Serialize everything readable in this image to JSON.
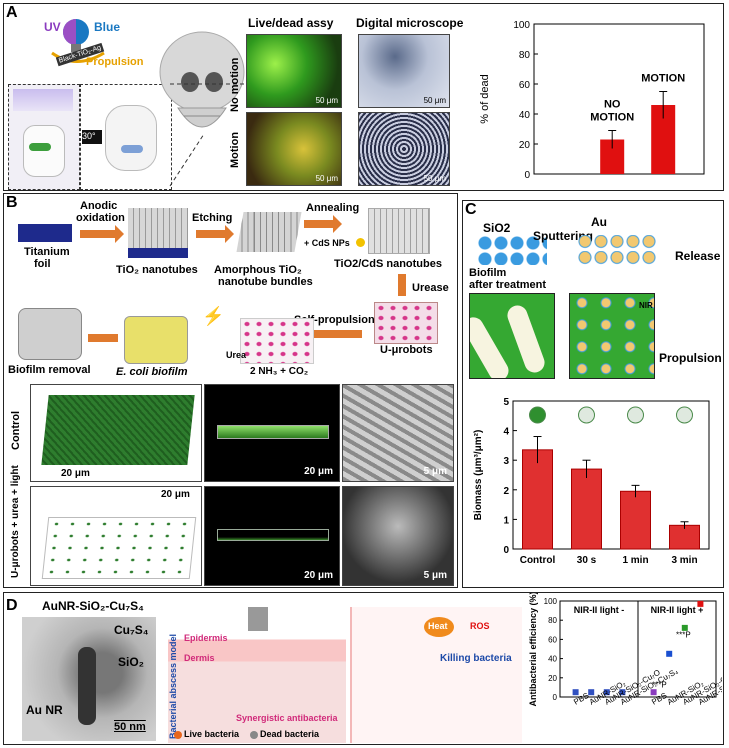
{
  "panels": {
    "a": "A",
    "b": "B",
    "c": "C",
    "d": "D"
  },
  "a": {
    "uv": "UV",
    "blue": "Blue",
    "propulsion": "Propulsion",
    "particle": "Black-TiO₂-Ag",
    "angle": "30°",
    "live_dead": "Live/dead assy",
    "digital": "Digital microscope",
    "no_motion": "No motion",
    "motion": "Motion",
    "sb_live_1": "50 μm",
    "sb_live_2": "50 μm",
    "sb_dig_1": "50 μm",
    "sb_dig_2": "50 μm"
  },
  "chart_a": {
    "type": "bar",
    "categories": [
      "NO MOTION",
      "MOTION"
    ],
    "values": [
      23,
      46
    ],
    "errors": [
      6,
      9
    ],
    "ylabel": "% of dead",
    "ylim": [
      0,
      100
    ],
    "yticks": [
      "0",
      "20",
      "40",
      "60",
      "80",
      "100"
    ],
    "bar_labels": [
      "NO\nMOTION",
      "MOTION"
    ],
    "color": "#e01010"
  },
  "b": {
    "titanium": "Titanium",
    "foil": "foil",
    "anodic": "Anodic",
    "oxidation": "oxidation",
    "etching": "Etching",
    "annealing": "Annealing",
    "cds": "+ CdS NPs",
    "tio2_nt": "TiO₂ nanotubes",
    "amorph_1": "Amorphous TiO₂",
    "amorph_2": "nanotube bundles",
    "tio2_cds": "TiO2/CdS nanotubes",
    "urease": "Urease",
    "self_prop": "Self-propulsion",
    "urea": "Urea",
    "nh3": "2 NH₃ + CO₂",
    "u_robots": "U-μrobots",
    "biofilm_removal": "Biofilm removal",
    "ecoli": "E. coli biofilm",
    "control": "Control",
    "treated": "U-μrobots + urea + light",
    "sb20a": "20 μm",
    "sb20b": "20 μm",
    "sb5a": "5 μm",
    "sb20c": "20 μm",
    "sb20d": "20 μm",
    "sb5b": "5 μm"
  },
  "c": {
    "sio2": "SiO2",
    "au": "Au",
    "sputtering": "Sputtering",
    "release": "Release",
    "propulsion": "Propulsion",
    "biofilm_1": "Biofilm",
    "biofilm_2": "after treatment",
    "nir": "NIR"
  },
  "chart_c": {
    "type": "bar",
    "categories": [
      "Control",
      "30 s",
      "1 min",
      "3 min"
    ],
    "values": [
      3.35,
      2.7,
      1.95,
      0.8
    ],
    "errors": [
      0.45,
      0.3,
      0.2,
      0.12
    ],
    "ylabel": "Biomass (μm³/μm²)",
    "ylim": [
      0,
      5
    ],
    "yticks": [
      "0",
      "1",
      "2",
      "3",
      "4",
      "5"
    ],
    "color": "#e03030"
  },
  "d": {
    "title": "AuNR-SiO₂-Cu₇S₄",
    "cu7s4": "Cu₇S₄",
    "sio2": "SiO₂",
    "aunr": "Au NR",
    "sb": "50 nm",
    "epidermis": "Epidermis",
    "dermis": "Dermis",
    "model": "Bacterial abscess model",
    "syn": "Synergistic antibacteria",
    "live": "Live bacteria",
    "dead": "Dead bacteria",
    "heat": "Heat",
    "ros": "ROS",
    "killing": "Killing bacteria"
  },
  "chart_d": {
    "type": "scatter",
    "ylabel": "Antibacterial efficiency (%)",
    "ylim": [
      0,
      100
    ],
    "yticks": [
      "0",
      "20",
      "40",
      "60",
      "80",
      "100"
    ],
    "left_title": "NIR-II light -",
    "right_title": "NIR-II light +",
    "categories": [
      "PBS",
      "AuNR-SiO₂",
      "AuNR-SiO₂-Cu₇O",
      "AuNR-SiO₂-Cu₇S₄"
    ],
    "series": [
      {
        "name": "NIR-II light -",
        "values": [
          5,
          5,
          5,
          5
        ]
      },
      {
        "name": "NIR-II light +",
        "values": [
          5,
          45,
          72,
          97
        ]
      }
    ],
    "sig": "***P"
  }
}
